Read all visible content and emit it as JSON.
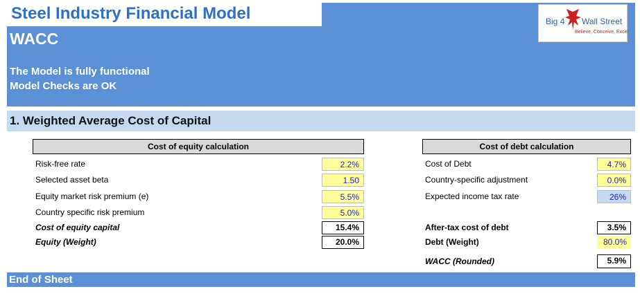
{
  "header": {
    "app_title": "Steel Industry Financial Model",
    "sheet_title": "WACC",
    "status_line_1": "The Model is fully functional",
    "status_line_2": "Model Checks are OK"
  },
  "logo": {
    "text_left": "Big 4",
    "text_right": "Wall Street",
    "tagline": "Believe, Conceive, Excel"
  },
  "section": {
    "title": "1. Weighted Average Cost of Capital"
  },
  "equity_table": {
    "header": "Cost of equity calculation",
    "rows": [
      {
        "label": "Risk-free rate",
        "value": "2.2%"
      },
      {
        "label": "Selected asset beta",
        "value": "1.50"
      },
      {
        "label": "Equity market risk premium (e)",
        "value": "5.5%"
      },
      {
        "label": "Country specific risk premium",
        "value": "5.0%"
      }
    ],
    "result": {
      "label": "Cost of equity capital",
      "value": "15.4%"
    },
    "weight": {
      "label": "Equity (Weight)",
      "value": "20.0%"
    }
  },
  "debt_table": {
    "header": "Cost of debt calculation",
    "rows": [
      {
        "label": "Cost of Debt",
        "value": "4.7%"
      },
      {
        "label": "Country-specific adjustment",
        "value": "0.0%"
      },
      {
        "label": "Expected income tax rate",
        "value": "26%"
      }
    ],
    "result": {
      "label": "After-tax cost of debt",
      "value": "3.5%"
    },
    "weight": {
      "label": "Debt (Weight)",
      "value": "80.0%"
    },
    "wacc": {
      "label": "WACC (Rounded)",
      "value": "5.9%"
    }
  },
  "footer": {
    "text": "End of Sheet"
  },
  "colors": {
    "header_blue": "#5b8fd6",
    "title_blue": "#2e6fc9",
    "section_light_blue": "#c5d9f1",
    "input_yellow": "#ffff99",
    "input_text_blue": "#1f1fcc",
    "table_header_gray": "#d9d9d9"
  }
}
